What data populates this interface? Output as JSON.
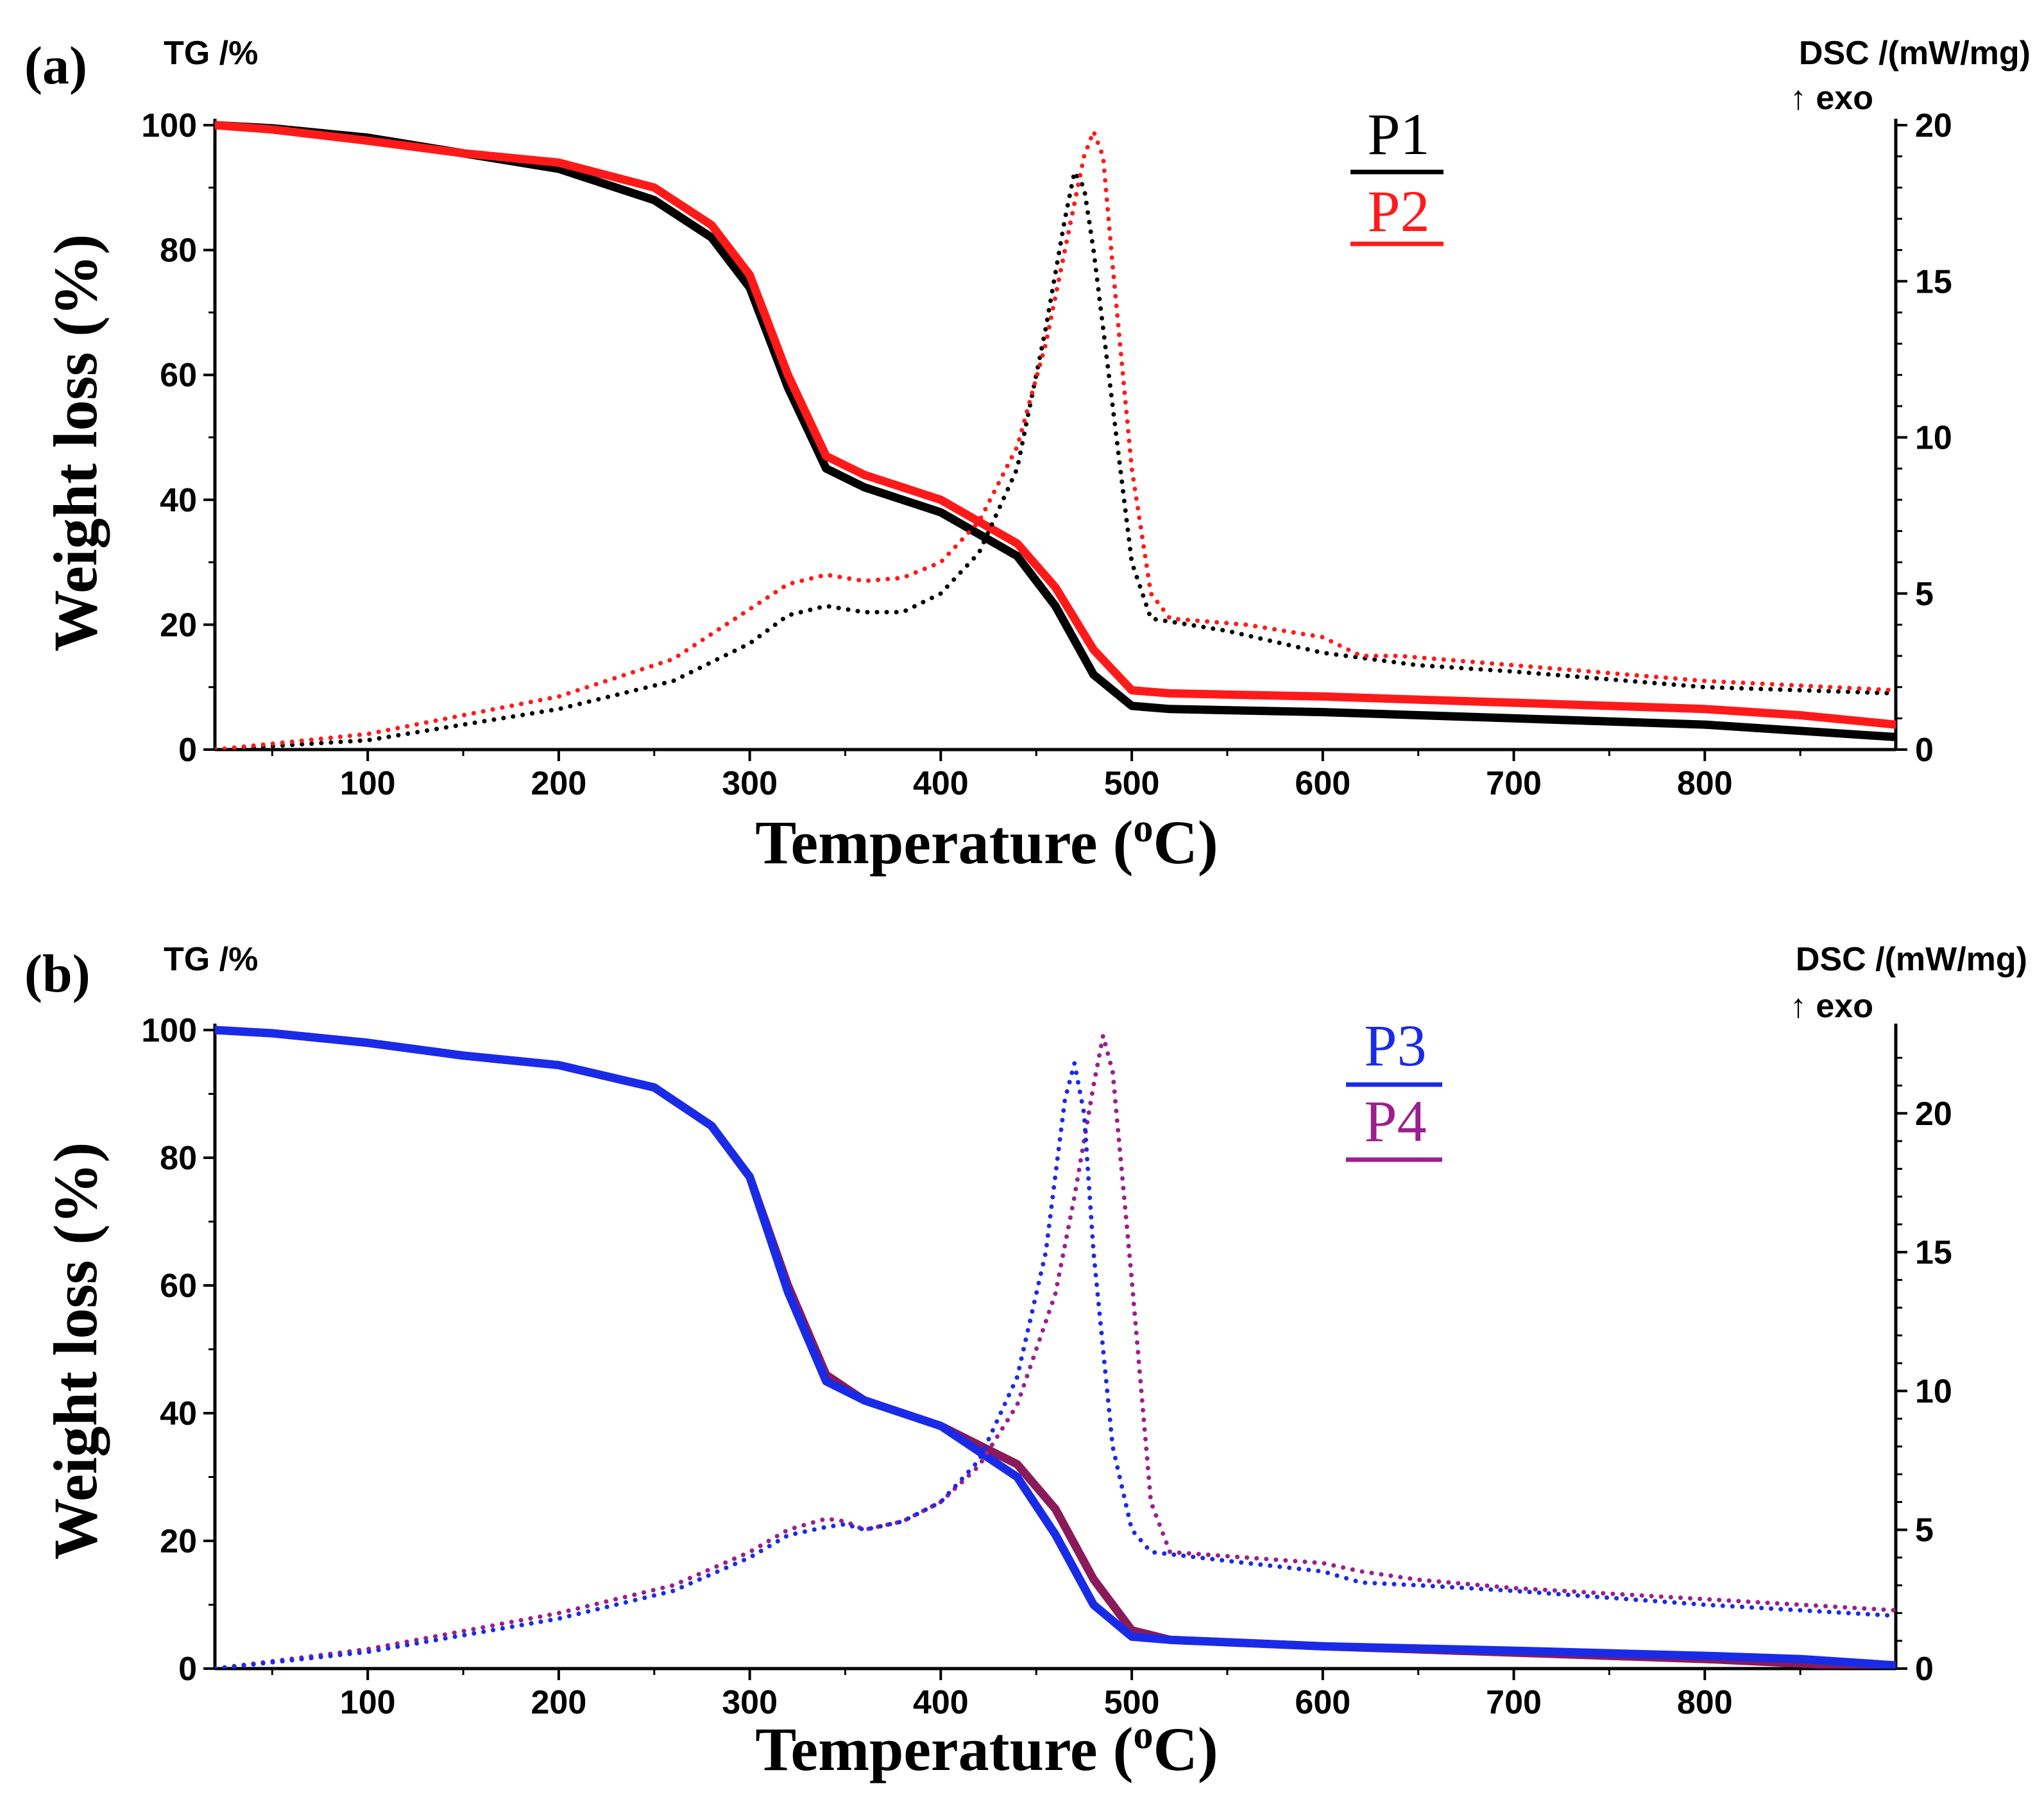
{
  "figure": {
    "domain": "Chart",
    "description_panels": [
      "(a)",
      "(b)"
    ]
  },
  "chart_data": [
    {
      "panel": "(a)",
      "type": "line",
      "xlabel": "Temperature (",
      "xlabel_sup": "o",
      "xlabel_end": "C)",
      "ylabel": "Weight loss (%)",
      "y_top_label": "TG /%",
      "y2_top_label": "DSC /(mW/mg)",
      "y2_exo_label": "↑ exo",
      "xlim": [
        20,
        900
      ],
      "ylim": [
        0,
        100
      ],
      "y2lim": [
        0,
        20
      ],
      "xticks": [
        100,
        200,
        300,
        400,
        500,
        600,
        700,
        800
      ],
      "yticks": [
        0,
        20,
        40,
        60,
        80,
        100
      ],
      "y2ticks": [
        0,
        5,
        10,
        15,
        20
      ],
      "legend": [
        {
          "name": "P1",
          "color": "#000000"
        },
        {
          "name": "P2",
          "color": "#ff1a1a"
        }
      ],
      "series": [
        {
          "name": "P1 TG",
          "axis": "left",
          "style": "solid",
          "color": "#000000",
          "x": [
            20,
            50,
            100,
            150,
            200,
            250,
            280,
            300,
            320,
            340,
            360,
            400,
            440,
            460,
            480,
            500,
            520,
            600,
            700,
            800,
            850,
            900
          ],
          "values": [
            100,
            99.5,
            98,
            95.5,
            93,
            88,
            82,
            74,
            58,
            45,
            42,
            38,
            31,
            23,
            12,
            7,
            6.5,
            6,
            5,
            4,
            3,
            2
          ]
        },
        {
          "name": "P2 TG",
          "axis": "left",
          "style": "solid",
          "color": "#ff1a1a",
          "x": [
            20,
            50,
            100,
            150,
            200,
            250,
            280,
            300,
            320,
            340,
            360,
            400,
            440,
            460,
            480,
            500,
            520,
            600,
            700,
            800,
            850,
            900
          ],
          "values": [
            100,
            99.3,
            97.5,
            95.5,
            94,
            90,
            84,
            76,
            60,
            47,
            44,
            40,
            33,
            26,
            16,
            9.5,
            9,
            8.5,
            7.5,
            6.5,
            5.5,
            4
          ]
        },
        {
          "name": "P1 DSC",
          "axis": "right",
          "style": "dotted",
          "color": "#000000",
          "x": [
            20,
            100,
            200,
            260,
            300,
            320,
            340,
            360,
            380,
            400,
            420,
            440,
            455,
            465,
            470,
            475,
            480,
            490,
            500,
            510,
            550,
            600,
            650,
            700,
            800,
            900
          ],
          "values": [
            0,
            0.3,
            1.3,
            2.2,
            3.4,
            4.3,
            4.6,
            4.4,
            4.4,
            5.0,
            6.3,
            9.0,
            13.5,
            17.0,
            18.5,
            18.0,
            16.0,
            11.0,
            6.0,
            4.2,
            3.8,
            3.1,
            2.7,
            2.5,
            2.0,
            1.8
          ]
        },
        {
          "name": "P2 DSC",
          "axis": "right",
          "style": "dotted",
          "color": "#ff1a1a",
          "x": [
            20,
            100,
            200,
            260,
            300,
            320,
            340,
            360,
            380,
            400,
            420,
            440,
            455,
            465,
            475,
            480,
            485,
            490,
            500,
            510,
            520,
            560,
            600,
            620,
            640,
            700,
            800,
            900
          ],
          "values": [
            0,
            0.5,
            1.7,
            2.9,
            4.5,
            5.3,
            5.6,
            5.4,
            5.5,
            6.0,
            7.3,
            9.7,
            13.0,
            16.0,
            19.0,
            19.8,
            19.0,
            15.5,
            9.0,
            5.0,
            4.2,
            4.0,
            3.6,
            3.0,
            3.0,
            2.7,
            2.2,
            1.9
          ]
        }
      ]
    },
    {
      "panel": "(b)",
      "type": "line",
      "xlabel": "Temperature (",
      "xlabel_sup": "o",
      "xlabel_end": "C)",
      "ylabel": "Weight loss (%)",
      "y_top_label": "TG /%",
      "y2_top_label": "DSC /(mW/mg)",
      "y2_exo_label": "↑ exo",
      "xlim": [
        20,
        900
      ],
      "ylim": [
        0,
        100
      ],
      "y2lim": [
        0,
        23
      ],
      "xticks": [
        100,
        200,
        300,
        400,
        500,
        600,
        700,
        800
      ],
      "yticks": [
        0,
        20,
        40,
        60,
        80,
        100
      ],
      "y2ticks": [
        0,
        5,
        10,
        15,
        20
      ],
      "legend": [
        {
          "name": "P3",
          "color": "#1a2be8"
        },
        {
          "name": "P4",
          "color": "#9b1f8f"
        }
      ],
      "series": [
        {
          "name": "P4 TG",
          "axis": "left",
          "style": "solid",
          "color": "#8b1a5a",
          "x": [
            20,
            50,
            100,
            150,
            200,
            250,
            280,
            300,
            320,
            340,
            360,
            400,
            440,
            460,
            480,
            500,
            520,
            600,
            700,
            800,
            850,
            900
          ],
          "values": [
            100,
            99.5,
            98,
            96,
            94.5,
            91,
            85,
            77,
            60,
            46,
            42,
            38,
            32,
            25,
            14,
            6,
            4.5,
            3.5,
            2.5,
            1.5,
            0.8,
            0
          ]
        },
        {
          "name": "P3 TG",
          "axis": "left",
          "style": "solid",
          "color": "#1a2be8",
          "x": [
            20,
            50,
            100,
            150,
            200,
            250,
            280,
            300,
            320,
            340,
            360,
            400,
            440,
            460,
            480,
            500,
            520,
            600,
            700,
            800,
            850,
            900
          ],
          "values": [
            100,
            99.5,
            98,
            96,
            94.5,
            91,
            85,
            77,
            59,
            45,
            42,
            38,
            30,
            21,
            10,
            5,
            4.5,
            3.5,
            2.8,
            2,
            1.5,
            0.5
          ]
        },
        {
          "name": "P4 DSC",
          "axis": "right",
          "style": "dotted",
          "color": "#9b1f8f",
          "x": [
            20,
            100,
            200,
            260,
            300,
            320,
            340,
            350,
            360,
            380,
            400,
            420,
            440,
            460,
            470,
            480,
            485,
            490,
            500,
            510,
            520,
            560,
            600,
            620,
            650,
            700,
            800,
            900
          ],
          "values": [
            0,
            0.7,
            2.0,
            3.0,
            4.2,
            5.0,
            5.4,
            5.3,
            5.0,
            5.3,
            6.0,
            7.3,
            9.5,
            13.5,
            17.0,
            21.0,
            22.8,
            21.5,
            14.0,
            6.0,
            4.2,
            4.0,
            3.8,
            3.5,
            3.2,
            2.9,
            2.5,
            2.1
          ]
        },
        {
          "name": "P3 DSC",
          "axis": "right",
          "style": "dotted",
          "color": "#1a2be8",
          "x": [
            20,
            100,
            200,
            260,
            300,
            320,
            340,
            350,
            360,
            380,
            400,
            420,
            440,
            455,
            465,
            470,
            475,
            480,
            490,
            500,
            510,
            560,
            600,
            620,
            650,
            700,
            800,
            900
          ],
          "values": [
            0,
            0.6,
            1.8,
            2.8,
            4.0,
            4.8,
            5.1,
            5.2,
            5.0,
            5.3,
            6.0,
            7.5,
            10.5,
            15.0,
            20.5,
            21.8,
            20.0,
            15.0,
            8.0,
            5.0,
            4.2,
            3.8,
            3.5,
            3.1,
            3.0,
            2.8,
            2.3,
            1.9
          ]
        }
      ]
    }
  ]
}
